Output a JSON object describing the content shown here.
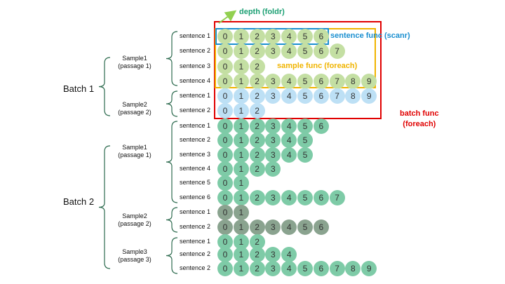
{
  "annotations": {
    "depth": "depth (foldr)",
    "sentence_func": "sentence func (scanr)",
    "sample_func": "sample func (foreach)",
    "batch_func_line1": "batch func",
    "batch_func_line2": "(foreach)"
  },
  "batches": [
    {
      "label": "Batch 1",
      "samples": [
        {
          "label_line1": "Sample1",
          "label_line2": "(passage 1)",
          "sentences": [
            {
              "label": "sentence 1",
              "tokens": [
                "0",
                "1",
                "2",
                "3",
                "4",
                "5",
                "6"
              ]
            },
            {
              "label": "sentence 2",
              "tokens": [
                "0",
                "1",
                "2",
                "3",
                "4",
                "5",
                "6",
                "7"
              ]
            },
            {
              "label": "sentence 3",
              "tokens": [
                "0",
                "1",
                "2"
              ]
            },
            {
              "label": "sentence 4",
              "tokens": [
                "0",
                "1",
                "2",
                "3",
                "4",
                "5",
                "6",
                "7",
                "8",
                "9"
              ]
            }
          ]
        },
        {
          "label_line1": "Sample2",
          "label_line2": "(passage 2)",
          "sentences": [
            {
              "label": "sentence 1",
              "tokens": [
                "0",
                "1",
                "2",
                "3",
                "4",
                "5",
                "6",
                "7",
                "8",
                "9"
              ]
            },
            {
              "label": "sentence 2",
              "tokens": [
                "0",
                "1",
                "2"
              ]
            }
          ]
        }
      ]
    },
    {
      "label": "Batch 2",
      "samples": [
        {
          "label_line1": "Sample1",
          "label_line2": "(passage 1)",
          "sentences": [
            {
              "label": "sentence 1",
              "tokens": [
                "0",
                "1",
                "2",
                "3",
                "4",
                "5",
                "6"
              ]
            },
            {
              "label": "sentence 2",
              "tokens": [
                "0",
                "1",
                "2",
                "3",
                "4",
                "5"
              ]
            },
            {
              "label": "sentence 3",
              "tokens": [
                "0",
                "1",
                "2",
                "3",
                "4",
                "5"
              ]
            },
            {
              "label": "sentence 4",
              "tokens": [
                "0",
                "1",
                "2",
                "3"
              ]
            },
            {
              "label": "sentence 5",
              "tokens": [
                "0",
                "1"
              ]
            },
            {
              "label": "sentence 6",
              "tokens": [
                "0",
                "1",
                "2",
                "3",
                "4",
                "5",
                "6",
                "7"
              ]
            }
          ]
        },
        {
          "label_line1": "Sample2",
          "label_line2": "(passage 2)",
          "sentences": [
            {
              "label": "sentence 1",
              "tokens": [
                "0",
                "1"
              ]
            },
            {
              "label": "sentence 2",
              "tokens": [
                "0",
                "1",
                "2",
                "3",
                "4",
                "5",
                "6"
              ]
            }
          ]
        },
        {
          "label_line1": "Sample3",
          "label_line2": "(passage 3)",
          "sentences": [
            {
              "label": "sentence 1",
              "tokens": [
                "0",
                "1",
                "2"
              ]
            },
            {
              "label": "sentence 2",
              "tokens": [
                "0",
                "1",
                "2",
                "3",
                "4"
              ]
            },
            {
              "label": "sentence 2",
              "tokens": [
                "0",
                "1",
                "2",
                "3",
                "4",
                "5",
                "6",
                "7",
                "8",
                "9"
              ]
            }
          ]
        }
      ]
    }
  ],
  "colors": {
    "batch1_sample1": "#c4dfa3",
    "batch1_sample2": "#bde0f5",
    "batch2_sample1": "#7ecba7",
    "batch2_sample2": "#8aa38f",
    "batch2_sample3": "#7ecba7",
    "depth_arrow": "#92d050",
    "depth_text": "#1a9f72",
    "sentence_box": "#1a8fd0",
    "sample_box": "#f0b400",
    "batch_box": "#e00000"
  }
}
